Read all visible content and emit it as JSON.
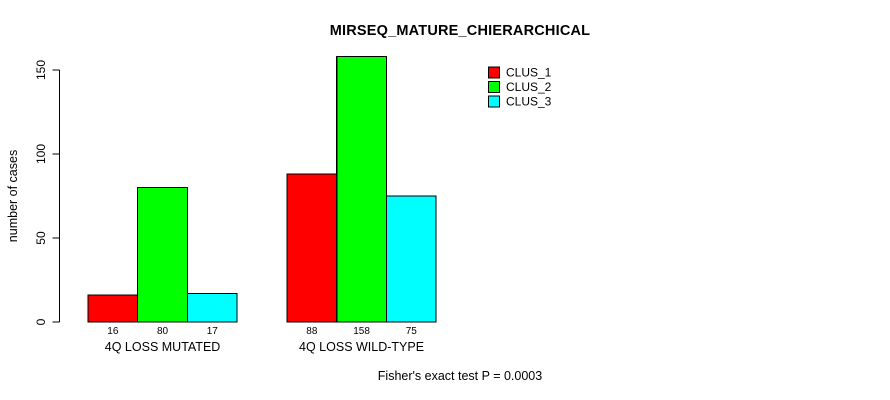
{
  "figure": {
    "title": "MIRSEQ_MATURE_CHIERARCHICAL",
    "caption": "Fisher's exact test P = 0.0003",
    "background_color": "#FFFFFF"
  },
  "chart_data": {
    "type": "bar",
    "title": "MIRSEQ_MATURE_CHIERARCHICAL",
    "categories": [
      "4Q LOSS MUTATED",
      "4Q LOSS WILD-TYPE"
    ],
    "series": [
      {
        "name": "CLUS_1",
        "color": "#FF0000",
        "values": [
          16,
          88
        ]
      },
      {
        "name": "CLUS_2",
        "color": "#00FF00",
        "values": [
          80,
          158
        ]
      },
      {
        "name": "CLUS_3",
        "color": "#00FFFF",
        "values": [
          17,
          75
        ]
      }
    ],
    "bar_value_labels": [
      [
        16,
        80,
        17
      ],
      [
        88,
        158,
        75
      ]
    ],
    "xlabel": "",
    "ylabel": "number of cases",
    "ylim": [
      0,
      150
    ],
    "yticks": [
      0,
      50,
      100,
      150
    ],
    "y_tick_label_rotation": 90,
    "grid": false,
    "bar_border_color": "#000000",
    "legend": {
      "position": "top-right",
      "entries": [
        "CLUS_1",
        "CLUS_2",
        "CLUS_3"
      ]
    },
    "caption": "Fisher's exact test P = 0.0003"
  }
}
